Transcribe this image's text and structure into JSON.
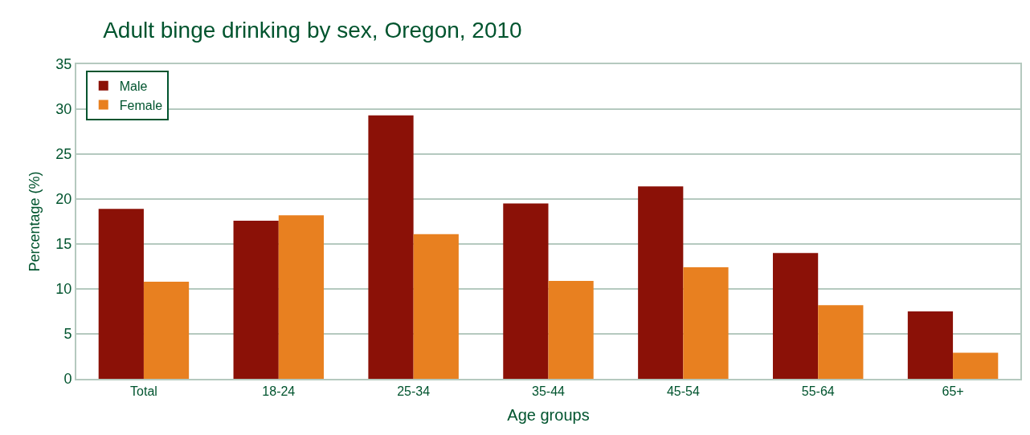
{
  "chart_data": {
    "type": "bar",
    "title": "Adult binge drinking by sex, Oregon, 2010",
    "xlabel": "Age groups",
    "ylabel": "Percentage (%)",
    "categories": [
      "Total",
      "18-24",
      "25-34",
      "35-44",
      "45-54",
      "55-64",
      "65+"
    ],
    "series": [
      {
        "name": "Male",
        "color": "#8b1107",
        "values": [
          18.9,
          17.6,
          29.3,
          19.5,
          21.4,
          14.0,
          7.5
        ]
      },
      {
        "name": "Female",
        "color": "#e88020",
        "values": [
          10.8,
          18.2,
          16.1,
          10.9,
          12.4,
          8.2,
          2.9
        ]
      }
    ],
    "ylim": [
      0,
      35
    ],
    "yticks": [
      0,
      5,
      10,
      15,
      20,
      25,
      30,
      35
    ],
    "grid": "y",
    "legend": "top left"
  }
}
